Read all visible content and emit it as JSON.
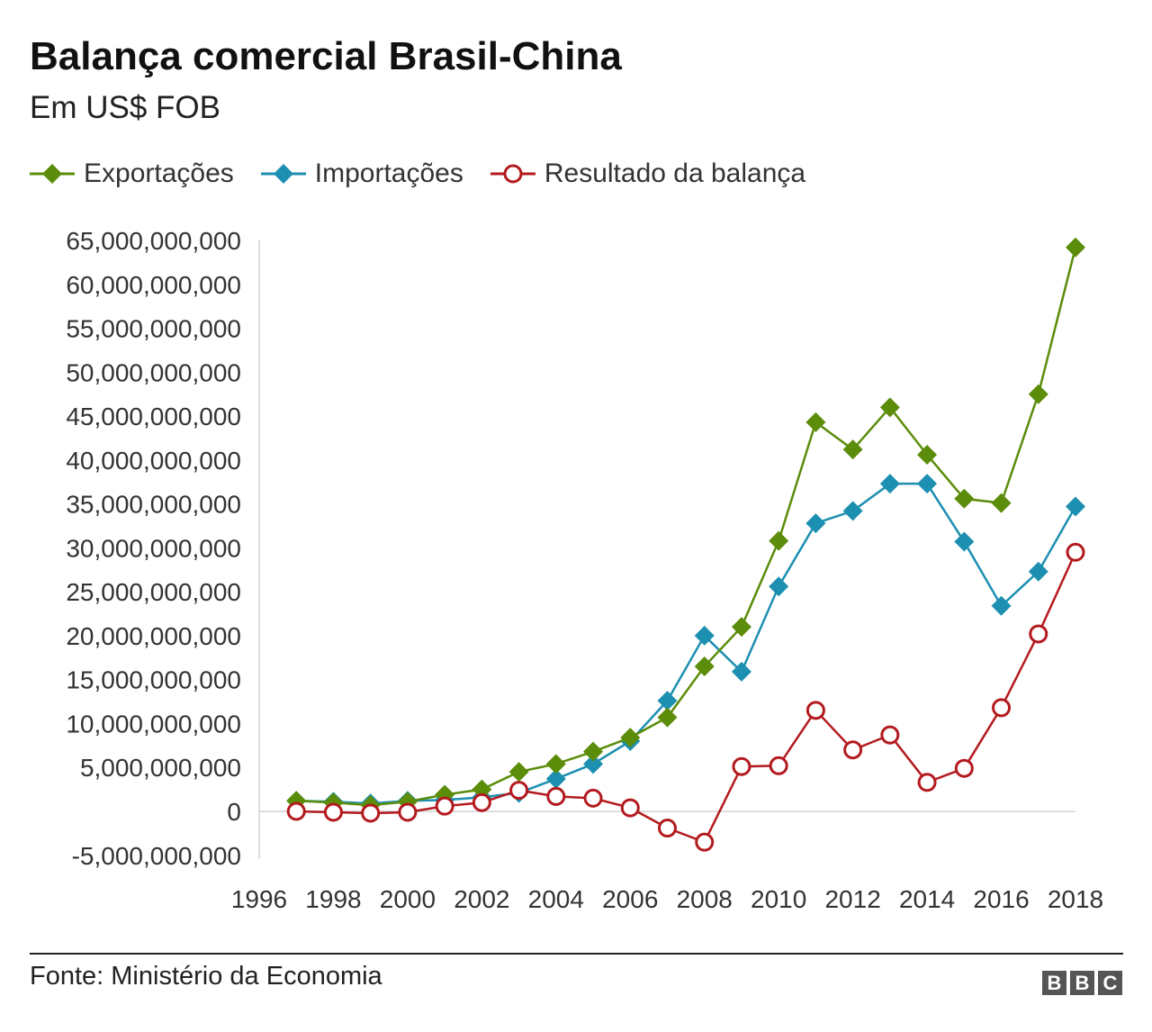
{
  "chart_data": {
    "type": "line",
    "title": "Balança comercial Brasil-China",
    "subtitle": "Em US$ FOB",
    "x": [
      1997,
      1998,
      1999,
      2000,
      2001,
      2002,
      2003,
      2004,
      2005,
      2006,
      2007,
      2008,
      2009,
      2010,
      2011,
      2012,
      2013,
      2014,
      2015,
      2016,
      2017,
      2018
    ],
    "series": [
      {
        "name": "Exportações",
        "color": "#5b8c0a",
        "marker": "diamond",
        "values": [
          1200000000.0,
          1000000000.0,
          700000000.0,
          1100000000.0,
          1900000000.0,
          2500000000.0,
          4500000000.0,
          5400000000.0,
          6800000000.0,
          8400000000.0,
          10700000000.0,
          16500000000.0,
          21000000000.0,
          30800000000.0,
          44300000000.0,
          41200000000.0,
          46000000000.0,
          40600000000.0,
          35600000000.0,
          35100000000.0,
          47500000000.0,
          64200000000.0
        ]
      },
      {
        "name": "Importações",
        "color": "#1d8fb1",
        "marker": "diamond",
        "values": [
          1200000000.0,
          1100000000.0,
          900000000.0,
          1200000000.0,
          1300000000.0,
          1600000000.0,
          2100000000.0,
          3700000000.0,
          5400000000.0,
          8000000000.0,
          12600000000.0,
          20000000000.0,
          15900000000.0,
          25600000000.0,
          32800000000.0,
          34200000000.0,
          37300000000.0,
          37300000000.0,
          30700000000.0,
          23400000000.0,
          27300000000.0,
          34700000000.0
        ]
      },
      {
        "name": "Resultado da balança",
        "color": "#b31a1e",
        "marker": "open-circle",
        "values": [
          0.0,
          -100000000.0,
          -200000000.0,
          -100000000.0,
          600000000.0,
          1000000000.0,
          2400000000.0,
          1700000000.0,
          1500000000.0,
          400000000.0,
          -1900000000.0,
          -3500000000.0,
          5100000000.0,
          5200000000.0,
          11500000000.0,
          7000000000.0,
          8700000000.0,
          3300000000.0,
          4900000000.0,
          11800000000.0,
          20200000000.0,
          29500000000.0
        ]
      }
    ],
    "ylim": [
      -5000000000,
      65000000000
    ],
    "yticks": [
      -5000000000,
      0,
      5000000000,
      10000000000,
      15000000000,
      20000000000,
      25000000000,
      30000000000,
      35000000000,
      40000000000,
      45000000000,
      50000000000,
      55000000000,
      60000000000,
      65000000000
    ],
    "ytick_labels": [
      "-5,000,000,000",
      "0",
      "5,000,000,000",
      "10,000,000,000",
      "15,000,000,000",
      "20,000,000,000",
      "25,000,000,000",
      "30,000,000,000",
      "35,000,000,000",
      "40,000,000,000",
      "45,000,000,000",
      "50,000,000,000",
      "55,000,000,000",
      "60,000,000,000",
      "65,000,000,000"
    ],
    "xlim": [
      1996,
      2018
    ],
    "xticks": [
      1996,
      1998,
      2000,
      2002,
      2004,
      2006,
      2008,
      2010,
      2012,
      2014,
      2016,
      2018
    ],
    "xtick_labels": [
      "1996",
      "1998",
      "2000",
      "2002",
      "2004",
      "2006",
      "2008",
      "2010",
      "2012",
      "2014",
      "2016",
      "2018"
    ],
    "grid": "zero line only",
    "legend": "top-left"
  },
  "footer": {
    "source": "Fonte: Ministério da Economia",
    "logo": "BBC"
  }
}
